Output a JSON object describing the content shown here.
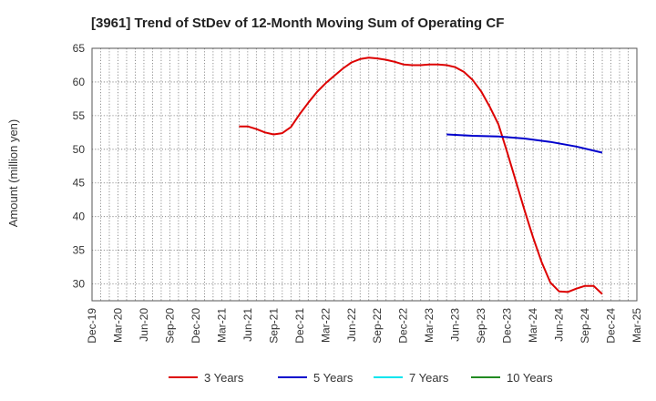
{
  "chart_data": {
    "type": "line",
    "title": "[3961]  Trend of StDev of 12-Month Moving Sum of Operating CF",
    "ylabel": "Amount (million yen)",
    "xlabel": "",
    "ylim": [
      27.5,
      65
    ],
    "yticks": [
      30,
      35,
      40,
      45,
      50,
      55,
      60,
      65
    ],
    "x_ticks": [
      "Dec-19",
      "Mar-20",
      "Jun-20",
      "Sep-20",
      "Dec-20",
      "Mar-21",
      "Jun-21",
      "Sep-21",
      "Dec-21",
      "Mar-22",
      "Jun-22",
      "Sep-22",
      "Dec-22",
      "Mar-23",
      "Jun-23",
      "Sep-23",
      "Dec-23",
      "Mar-24",
      "Jun-24",
      "Sep-24",
      "Dec-24",
      "Mar-25"
    ],
    "grid": true,
    "legend_position": "bottom",
    "series": [
      {
        "name": "3 Years",
        "color": "#dd0000",
        "points": [
          [
            "May-21",
            53.4
          ],
          [
            "Jun-21",
            53.4
          ],
          [
            "Jul-21",
            53.0
          ],
          [
            "Aug-21",
            52.5
          ],
          [
            "Sep-21",
            52.2
          ],
          [
            "Oct-21",
            52.4
          ],
          [
            "Nov-21",
            53.3
          ],
          [
            "Dec-21",
            55.2
          ],
          [
            "Jan-22",
            56.9
          ],
          [
            "Feb-22",
            58.5
          ],
          [
            "Mar-22",
            59.8
          ],
          [
            "Apr-22",
            60.9
          ],
          [
            "May-22",
            62.0
          ],
          [
            "Jun-22",
            62.9
          ],
          [
            "Jul-22",
            63.4
          ],
          [
            "Aug-22",
            63.6
          ],
          [
            "Sep-22",
            63.5
          ],
          [
            "Oct-22",
            63.3
          ],
          [
            "Nov-22",
            63.0
          ],
          [
            "Dec-22",
            62.6
          ],
          [
            "Jan-23",
            62.5
          ],
          [
            "Feb-23",
            62.5
          ],
          [
            "Mar-23",
            62.6
          ],
          [
            "Apr-23",
            62.6
          ],
          [
            "May-23",
            62.5
          ],
          [
            "Jun-23",
            62.2
          ],
          [
            "Jul-23",
            61.5
          ],
          [
            "Aug-23",
            60.3
          ],
          [
            "Sep-23",
            58.6
          ],
          [
            "Oct-23",
            56.3
          ],
          [
            "Nov-23",
            53.7
          ],
          [
            "Dec-23",
            49.6
          ],
          [
            "Jan-24",
            45.3
          ],
          [
            "Feb-24",
            41.0
          ],
          [
            "Mar-24",
            36.9
          ],
          [
            "Apr-24",
            33.2
          ],
          [
            "May-24",
            30.2
          ],
          [
            "Jun-24",
            28.9
          ],
          [
            "Jul-24",
            28.8
          ],
          [
            "Aug-24",
            29.3
          ],
          [
            "Sep-24",
            29.7
          ],
          [
            "Oct-24",
            29.7
          ],
          [
            "Nov-24",
            28.5
          ]
        ]
      },
      {
        "name": "5 Years",
        "color": "#0000cc",
        "points": [
          [
            "May-23",
            52.2
          ],
          [
            "Aug-23",
            52.0
          ],
          [
            "Nov-23",
            51.9
          ],
          [
            "Feb-24",
            51.6
          ],
          [
            "May-24",
            51.1
          ],
          [
            "Aug-24",
            50.4
          ],
          [
            "Nov-24",
            49.5
          ]
        ]
      },
      {
        "name": "7 Years",
        "color": "#00e5ee",
        "points": []
      },
      {
        "name": "10 Years",
        "color": "#228b22",
        "points": []
      }
    ]
  }
}
